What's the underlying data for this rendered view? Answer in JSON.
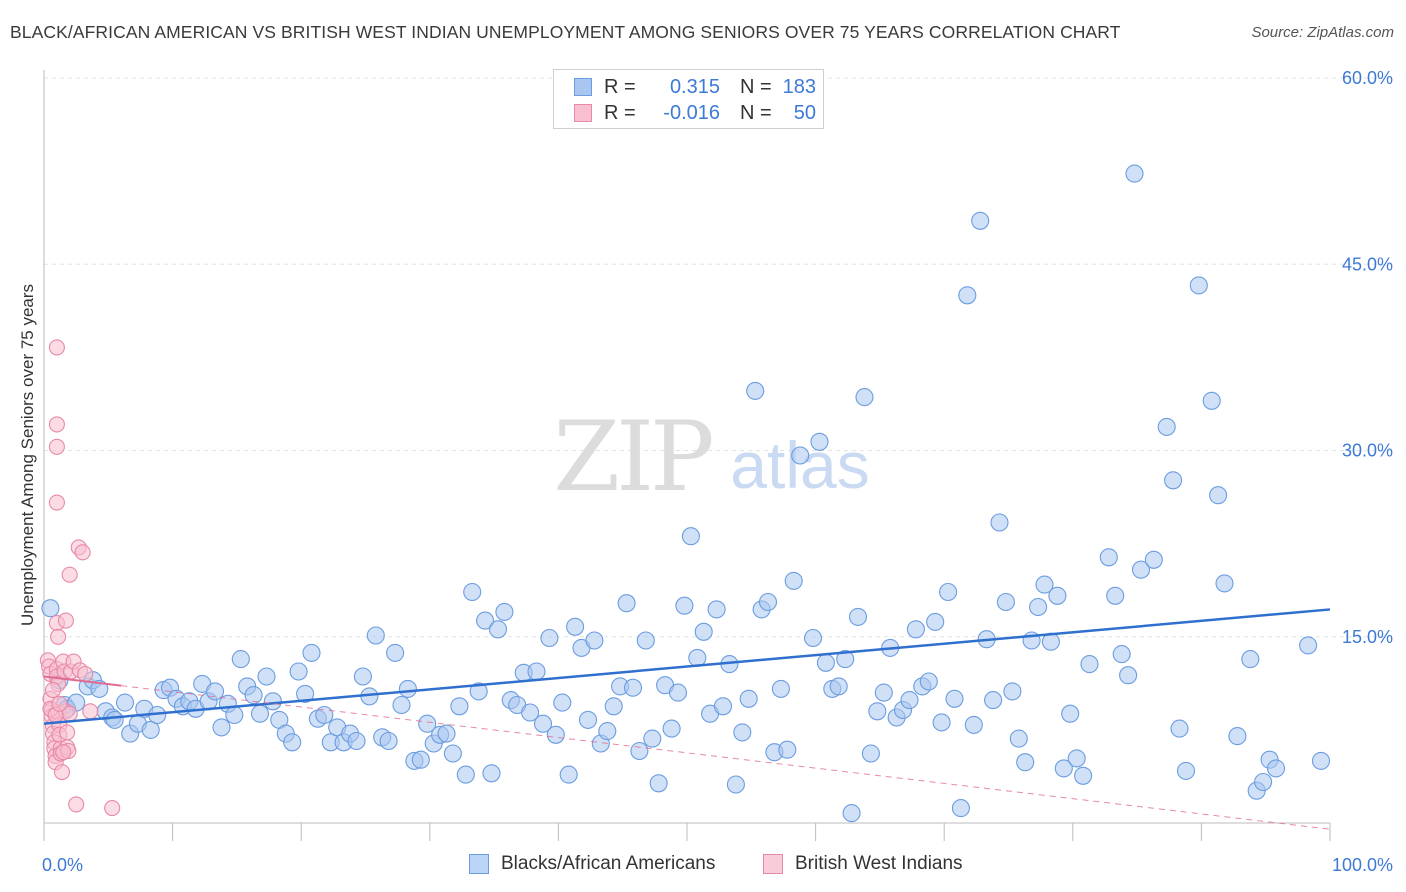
{
  "title": "BLACK/AFRICAN AMERICAN VS BRITISH WEST INDIAN UNEMPLOYMENT AMONG SENIORS OVER 75 YEARS CORRELATION CHART",
  "source": "Source: ZipAtlas.com",
  "watermark": {
    "zip": "ZIP",
    "atlas": "atlas"
  },
  "legend": {
    "rows": [
      {
        "r_label": "R =",
        "r_value": "0.315",
        "n_label": "N =",
        "n_value": "183",
        "color": "#a9c6f0",
        "border": "#6b9de0"
      },
      {
        "r_label": "R =",
        "r_value": "-0.016",
        "n_label": "N =",
        "n_value": "50",
        "color": "#f7bfd0",
        "border": "#e889a6"
      }
    ]
  },
  "bottom_legend": [
    {
      "label": "Blacks/African Americans",
      "color": "#bcd4f5",
      "border": "#6b9de0"
    },
    {
      "label": "British West Indians",
      "color": "#f9ccd9",
      "border": "#e889a6"
    }
  ],
  "chart_data": {
    "type": "scatter",
    "title": "BLACK/AFRICAN AMERICAN VS BRITISH WEST INDIAN UNEMPLOYMENT AMONG SENIORS OVER 75 YEARS CORRELATION CHART",
    "xlabel": "",
    "ylabel": "Unemployment Among Seniors over 75 years",
    "xlim": [
      0,
      100
    ],
    "ylim": [
      0,
      60
    ],
    "x_tick_labels": [
      "0.0%",
      "100.0%"
    ],
    "y_ticks": [
      15,
      30,
      45,
      60
    ],
    "y_tick_labels": [
      "15.0%",
      "30.0%",
      "45.0%",
      "60.0%"
    ],
    "grid": true,
    "series": [
      {
        "name": "Blacks/African Americans",
        "color": "#a9c6f0",
        "stroke": "#6b9de0",
        "trend": {
          "x": [
            0,
            100
          ],
          "y": [
            8.0,
            17.2
          ],
          "color": "#2f6fce",
          "dashed": false
        },
        "points": [
          [
            0.5,
            17.3
          ],
          [
            1.2,
            11.5
          ],
          [
            1.6,
            9.5
          ],
          [
            1.8,
            9.2
          ],
          [
            2.5,
            9.7
          ],
          [
            3.4,
            11.0
          ],
          [
            3.8,
            11.5
          ],
          [
            4.3,
            10.8
          ],
          [
            4.8,
            9.0
          ],
          [
            5.3,
            8.5
          ],
          [
            5.5,
            8.3
          ],
          [
            6.3,
            9.7
          ],
          [
            6.7,
            7.2
          ],
          [
            7.3,
            8.0
          ],
          [
            7.8,
            9.2
          ],
          [
            8.3,
            7.5
          ],
          [
            8.8,
            8.7
          ],
          [
            9.3,
            10.7
          ],
          [
            9.8,
            10.9
          ],
          [
            10.3,
            10.0
          ],
          [
            10.8,
            9.4
          ],
          [
            11.3,
            9.8
          ],
          [
            11.8,
            9.2
          ],
          [
            12.3,
            11.2
          ],
          [
            12.8,
            9.8
          ],
          [
            13.3,
            10.6
          ],
          [
            13.8,
            7.7
          ],
          [
            14.3,
            9.6
          ],
          [
            14.8,
            8.7
          ],
          [
            15.3,
            13.2
          ],
          [
            15.8,
            11.0
          ],
          [
            16.3,
            10.3
          ],
          [
            16.8,
            8.8
          ],
          [
            17.3,
            11.8
          ],
          [
            17.8,
            9.8
          ],
          [
            18.3,
            8.3
          ],
          [
            18.8,
            7.2
          ],
          [
            19.3,
            6.5
          ],
          [
            19.8,
            12.2
          ],
          [
            20.3,
            10.4
          ],
          [
            20.8,
            13.7
          ],
          [
            21.3,
            8.4
          ],
          [
            21.8,
            8.7
          ],
          [
            22.3,
            6.5
          ],
          [
            22.8,
            7.7
          ],
          [
            23.3,
            6.5
          ],
          [
            23.8,
            7.2
          ],
          [
            24.3,
            6.6
          ],
          [
            24.8,
            11.8
          ],
          [
            25.3,
            10.2
          ],
          [
            25.8,
            15.1
          ],
          [
            26.3,
            6.9
          ],
          [
            26.8,
            6.6
          ],
          [
            27.3,
            13.7
          ],
          [
            27.8,
            9.5
          ],
          [
            28.3,
            10.8
          ],
          [
            28.8,
            5.0
          ],
          [
            29.3,
            5.1
          ],
          [
            29.8,
            8.0
          ],
          [
            30.3,
            6.4
          ],
          [
            30.8,
            7.1
          ],
          [
            31.3,
            7.2
          ],
          [
            31.8,
            5.6
          ],
          [
            32.3,
            9.4
          ],
          [
            32.8,
            3.9
          ],
          [
            33.3,
            18.6
          ],
          [
            33.8,
            10.6
          ],
          [
            34.3,
            16.3
          ],
          [
            34.8,
            4.0
          ],
          [
            35.3,
            15.6
          ],
          [
            35.8,
            17.0
          ],
          [
            36.3,
            9.9
          ],
          [
            36.8,
            9.5
          ],
          [
            37.3,
            12.1
          ],
          [
            37.8,
            8.9
          ],
          [
            38.3,
            12.2
          ],
          [
            38.8,
            8.0
          ],
          [
            39.3,
            14.9
          ],
          [
            39.8,
            7.1
          ],
          [
            40.3,
            9.7
          ],
          [
            40.8,
            3.9
          ],
          [
            41.3,
            15.8
          ],
          [
            41.8,
            14.1
          ],
          [
            42.3,
            8.3
          ],
          [
            42.8,
            14.7
          ],
          [
            43.3,
            6.4
          ],
          [
            43.8,
            7.4
          ],
          [
            44.3,
            9.4
          ],
          [
            44.8,
            11.0
          ],
          [
            45.3,
            17.7
          ],
          [
            45.8,
            10.9
          ],
          [
            46.3,
            5.8
          ],
          [
            46.8,
            14.7
          ],
          [
            47.3,
            6.8
          ],
          [
            47.8,
            3.2
          ],
          [
            48.3,
            11.1
          ],
          [
            48.8,
            7.6
          ],
          [
            49.3,
            10.5
          ],
          [
            49.8,
            17.5
          ],
          [
            50.3,
            23.1
          ],
          [
            50.8,
            13.3
          ],
          [
            51.3,
            15.4
          ],
          [
            51.8,
            8.8
          ],
          [
            52.3,
            17.2
          ],
          [
            52.8,
            9.4
          ],
          [
            53.3,
            12.8
          ],
          [
            53.8,
            3.1
          ],
          [
            54.3,
            7.3
          ],
          [
            54.8,
            10.0
          ],
          [
            55.3,
            34.8
          ],
          [
            55.8,
            17.2
          ],
          [
            56.3,
            17.8
          ],
          [
            56.8,
            5.7
          ],
          [
            57.3,
            10.8
          ],
          [
            57.8,
            5.9
          ],
          [
            58.3,
            19.5
          ],
          [
            58.8,
            29.6
          ],
          [
            59.8,
            14.9
          ],
          [
            60.3,
            30.7
          ],
          [
            60.8,
            12.9
          ],
          [
            61.3,
            10.8
          ],
          [
            61.8,
            11.0
          ],
          [
            62.3,
            13.2
          ],
          [
            62.8,
            0.8
          ],
          [
            63.3,
            16.6
          ],
          [
            63.8,
            34.3
          ],
          [
            64.3,
            5.6
          ],
          [
            64.8,
            9.0
          ],
          [
            65.3,
            10.5
          ],
          [
            65.8,
            14.1
          ],
          [
            66.3,
            8.5
          ],
          [
            66.8,
            9.1
          ],
          [
            67.3,
            9.9
          ],
          [
            67.8,
            15.6
          ],
          [
            68.3,
            11.0
          ],
          [
            68.8,
            11.4
          ],
          [
            69.3,
            16.2
          ],
          [
            69.8,
            8.1
          ],
          [
            70.3,
            18.6
          ],
          [
            70.8,
            10.0
          ],
          [
            71.3,
            1.2
          ],
          [
            71.8,
            42.5
          ],
          [
            72.3,
            7.9
          ],
          [
            72.8,
            48.5
          ],
          [
            73.3,
            14.8
          ],
          [
            73.8,
            9.9
          ],
          [
            74.3,
            24.2
          ],
          [
            74.8,
            17.8
          ],
          [
            75.3,
            10.6
          ],
          [
            75.8,
            6.8
          ],
          [
            76.3,
            4.9
          ],
          [
            76.8,
            14.7
          ],
          [
            77.3,
            17.4
          ],
          [
            77.8,
            19.2
          ],
          [
            78.3,
            14.6
          ],
          [
            78.8,
            18.3
          ],
          [
            79.3,
            4.4
          ],
          [
            79.8,
            8.8
          ],
          [
            80.3,
            5.2
          ],
          [
            80.8,
            3.8
          ],
          [
            81.3,
            12.8
          ],
          [
            82.8,
            21.4
          ],
          [
            83.3,
            18.3
          ],
          [
            83.8,
            13.6
          ],
          [
            84.3,
            11.9
          ],
          [
            84.8,
            52.3
          ],
          [
            85.3,
            20.4
          ],
          [
            86.3,
            21.2
          ],
          [
            87.3,
            31.9
          ],
          [
            87.8,
            27.6
          ],
          [
            88.3,
            7.6
          ],
          [
            88.8,
            4.2
          ],
          [
            89.8,
            43.3
          ],
          [
            90.8,
            34.0
          ],
          [
            91.3,
            26.4
          ],
          [
            91.8,
            19.3
          ],
          [
            92.8,
            7.0
          ],
          [
            93.8,
            13.2
          ],
          [
            94.3,
            2.6
          ],
          [
            94.8,
            3.3
          ],
          [
            95.3,
            5.1
          ],
          [
            95.8,
            4.4
          ],
          [
            98.3,
            14.3
          ],
          [
            99.3,
            5.0
          ]
        ]
      },
      {
        "name": "British West Indians",
        "color": "#f7bfd0",
        "stroke": "#e889a6",
        "trend": {
          "x": [
            0,
            100
          ],
          "y": [
            11.8,
            -0.5
          ],
          "color": "#e06b92",
          "dashed": true,
          "solid_until_x": 6
        },
        "points": [
          [
            0.3,
            13.1
          ],
          [
            0.4,
            12.6
          ],
          [
            0.5,
            12.0
          ],
          [
            0.5,
            10.0
          ],
          [
            0.6,
            9.1
          ],
          [
            0.6,
            8.6
          ],
          [
            0.7,
            7.8
          ],
          [
            0.7,
            7.2
          ],
          [
            0.8,
            6.5
          ],
          [
            0.8,
            6.0
          ],
          [
            0.9,
            5.4
          ],
          [
            0.9,
            4.9
          ],
          [
            1.0,
            16.1
          ],
          [
            1.0,
            12.4
          ],
          [
            1.0,
            11.8
          ],
          [
            1.1,
            11.2
          ],
          [
            1.1,
            8.9
          ],
          [
            1.2,
            7.9
          ],
          [
            1.2,
            7.1
          ],
          [
            1.3,
            6.0
          ],
          [
            1.3,
            5.6
          ],
          [
            1.4,
            4.1
          ],
          [
            1.0,
            32.1
          ],
          [
            1.0,
            30.3
          ],
          [
            1.0,
            25.8
          ],
          [
            1.0,
            38.3
          ],
          [
            1.1,
            15.0
          ],
          [
            1.5,
            13.0
          ],
          [
            1.6,
            12.2
          ],
          [
            1.7,
            9.0
          ],
          [
            1.8,
            7.3
          ],
          [
            1.8,
            6.1
          ],
          [
            1.9,
            5.8
          ],
          [
            2.0,
            8.8
          ],
          [
            2.1,
            12.2
          ],
          [
            2.3,
            13.0
          ],
          [
            2.5,
            1.5
          ],
          [
            2.7,
            22.2
          ],
          [
            2.8,
            12.3
          ],
          [
            3.0,
            21.8
          ],
          [
            1.7,
            16.3
          ],
          [
            2.0,
            20.0
          ],
          [
            0.5,
            9.2
          ],
          [
            0.9,
            8.7
          ],
          [
            1.5,
            5.7
          ],
          [
            5.3,
            1.2
          ],
          [
            3.2,
            12.0
          ],
          [
            3.6,
            9.0
          ],
          [
            1.2,
            9.6
          ],
          [
            0.7,
            10.7
          ]
        ]
      }
    ]
  }
}
